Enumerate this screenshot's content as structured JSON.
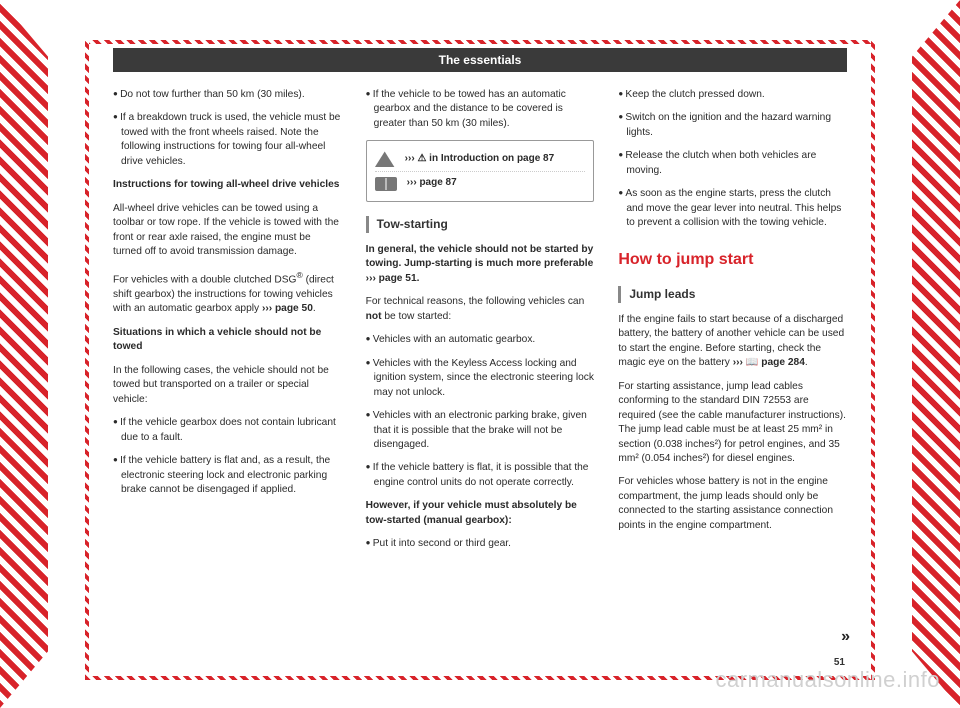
{
  "header": {
    "title": "The essentials"
  },
  "watermark": "carmanualsonline.info",
  "page_number": "51",
  "more_marker": "»",
  "col1": {
    "p1": "Do not tow further than 50 km (30 miles).",
    "p2": "If a breakdown truck is used, the vehicle must be towed with the front wheels raised. Note the following instructions for towing four all-wheel drive vehicles.",
    "h1": "Instructions for towing all-wheel drive vehicles",
    "p3": "All-wheel drive vehicles can be towed using a toolbar or tow rope. If the vehicle is towed with the front or rear axle raised, the engine must be turned off to avoid transmission damage.",
    "p4a": "For vehicles with a double clutched DSG",
    "p4sup": "®",
    "p4b": " (direct shift gearbox) the instructions for towing vehicles with an automatic gearbox apply ",
    "p4ref": "››› page 50",
    "p4c": ".",
    "h2": "Situations in which a vehicle should not be towed",
    "p5": "In the following cases, the vehicle should not be towed but transported on a trailer or special vehicle:",
    "p6": "If the vehicle gearbox does not contain lubricant due to a fault.",
    "p7": "If the vehicle battery is flat and, as a result, the electronic steering lock and electronic parking brake cannot be disengaged if applied."
  },
  "col2": {
    "p1": "If the vehicle to be towed has an automatic gearbox and the distance to be covered is greater than 50 km (30 miles).",
    "refbox": {
      "r1": "›››  ⚠ in Introduction on page 87",
      "r2": "››› page 87"
    },
    "sub1": "Tow-starting",
    "p2a": "In general, the vehicle should not be started by towing. Jump-starting is much more preferable ",
    "p2ref": "››› page 51",
    "p2b": ".",
    "p3a": "For technical reasons, the following vehicles can ",
    "p3not": "not",
    "p3b": " be tow started:",
    "p4": "Vehicles with an automatic gearbox.",
    "p5": "Vehicles with the Keyless Access locking and ignition system, since the electronic steering lock may not unlock.",
    "p6": "Vehicles with an electronic parking brake, given that it is possible that the brake will not be disengaged.",
    "p7": "If the vehicle battery is flat, it is possible that the engine control units do not operate correctly.",
    "h1": "However, if your vehicle must absolutely be tow-started (manual gearbox):",
    "p8": "Put it into second or third gear."
  },
  "col3": {
    "p1": "Keep the clutch pressed down.",
    "p2": "Switch on the ignition and the hazard warning lights.",
    "p3": "Release the clutch when both vehicles are moving.",
    "p4": "As soon as the engine starts, press the clutch and move the gear lever into neutral. This helps to prevent a collision with the towing vehicle.",
    "redh": "How to jump start",
    "sub1": "Jump leads",
    "p5a": "If the engine fails to start because of a discharged battery, the battery of another vehicle can be used to start the engine. Before starting, check the magic eye on the battery ",
    "p5ref": "››› 📖 page 284",
    "p5b": ".",
    "p6": "For starting assistance, jump lead cables conforming to the standard DIN 72553 are required (see the cable manufacturer instructions). The jump lead cable must be at least 25 mm² in section (0.038 inches²) for petrol engines, and 35 mm² (0.054 inches²) for diesel engines.",
    "p7": "For vehicles whose battery is not in the engine compartment, the jump leads should only be connected to the starting assistance connection points in the engine compartment."
  },
  "colors": {
    "red": "#d8232a",
    "header_bg": "#3a3a3a",
    "text": "#2a2a2a",
    "watermark": "#d0d0d0"
  }
}
